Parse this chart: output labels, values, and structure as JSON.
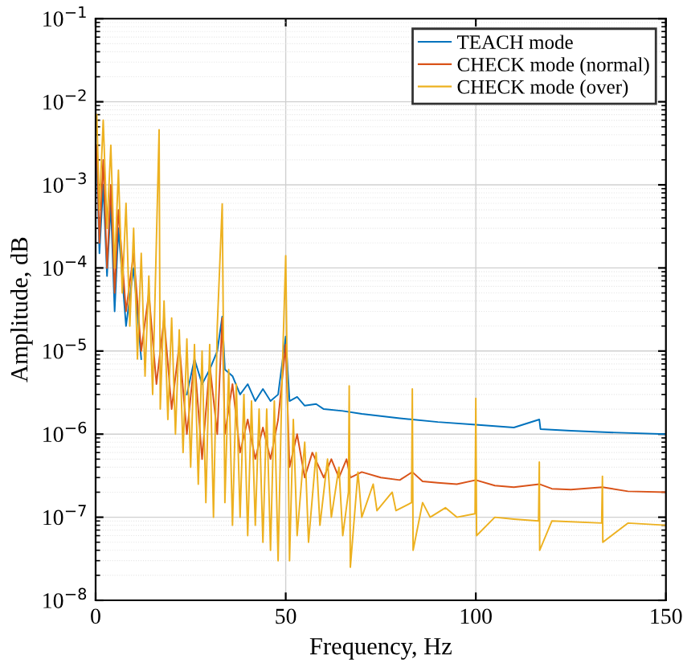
{
  "chart_data": {
    "type": "line",
    "xlabel": "Frequency, Hz",
    "ylabel": "Amplitude, dB",
    "log": "y",
    "grid": true,
    "legend": "top right",
    "marker": "none",
    "line_style": "solid",
    "xlim": [
      0,
      150
    ],
    "xticks": [
      0,
      50,
      100,
      150
    ],
    "ylim": [
      1e-08,
      0.1
    ],
    "yticks": [
      {
        "value": 1e-08,
        "label": "10$^{−8}$"
      },
      {
        "value": 1e-07,
        "label": "10$^{−7}$"
      },
      {
        "value": 1e-06,
        "label": "10$^{−6}$"
      },
      {
        "value": 1e-05,
        "label": "10$^{−5}$"
      },
      {
        "value": 0.0001,
        "label": "10$^{−4}$"
      },
      {
        "value": 0.001,
        "label": "10$^{−3}$"
      },
      {
        "value": 0.01,
        "label": "10$^{−2}$"
      },
      {
        "value": 0.1,
        "label": "10$^{−1}$"
      }
    ],
    "series": [
      {
        "name": "TEACH mode",
        "color": "#0072bd",
        "x": [
          0.3,
          1,
          2,
          3,
          4,
          5,
          6,
          8,
          10,
          12,
          14,
          16,
          18,
          20,
          22,
          24,
          26,
          28,
          30,
          32,
          33.3,
          34,
          36,
          38,
          40,
          42,
          44,
          46,
          48,
          50,
          51,
          53,
          55,
          58,
          60,
          65,
          70,
          75,
          80,
          90,
          100,
          110,
          116.7,
          117,
          125,
          135,
          150
        ],
        "values": [
          0.002,
          0.00015,
          0.001,
          8e-05,
          0.0006,
          3e-05,
          0.0003,
          2e-05,
          0.0001,
          8e-06,
          null,
          null,
          null,
          null,
          null,
          3e-06,
          8e-06,
          4e-06,
          6e-06,
          1e-05,
          2.6e-05,
          6e-06,
          5e-06,
          3e-06,
          4e-06,
          2.5e-06,
          3.5e-06,
          2.5e-06,
          3e-06,
          1.5e-05,
          2.5e-06,
          2.8e-06,
          2.2e-06,
          2.3e-06,
          2e-06,
          1.9e-06,
          1.75e-06,
          1.65e-06,
          1.55e-06,
          1.4e-06,
          1.3e-06,
          1.2e-06,
          1.5e-06,
          1.15e-06,
          1.1e-06,
          1.05e-06,
          1e-06
        ]
      },
      {
        "name": "CHECK mode (normal)",
        "color": "#d95319",
        "x": [
          0.3,
          1,
          2,
          3,
          4,
          5,
          6,
          8,
          10,
          12,
          14,
          16,
          18,
          20,
          22,
          24,
          26,
          28,
          30,
          32,
          33.3,
          34,
          36,
          38,
          40,
          42,
          44,
          46,
          48,
          50,
          51,
          53,
          55,
          57,
          60,
          62,
          64,
          66,
          67,
          70,
          75,
          80,
          83.3,
          86,
          90,
          95,
          100,
          105,
          110,
          116.7,
          120,
          125,
          133.3,
          140,
          150
        ],
        "values": [
          0.003,
          0.0002,
          0.002,
          0.0001,
          0.001,
          5e-05,
          0.0005,
          3e-05,
          0.00015,
          1e-05,
          5e-05,
          4e-06,
          2.5e-05,
          2e-06,
          1.2e-05,
          1e-06,
          8e-06,
          5e-07,
          7e-06,
          1e-06,
          2.5e-05,
          1e-06,
          4e-06,
          6e-07,
          1.5e-06,
          5e-07,
          1.2e-06,
          5e-07,
          1.5e-06,
          1.2e-05,
          4e-07,
          1e-06,
          3e-07,
          6e-07,
          3e-07,
          5e-07,
          3e-07,
          5e-07,
          3e-07,
          3.5e-07,
          3e-07,
          2.8e-07,
          3.5e-07,
          2.7e-07,
          2.6e-07,
          2.5e-07,
          2.8e-07,
          2.4e-07,
          2.3e-07,
          2.5e-07,
          2.2e-07,
          2.15e-07,
          2.3e-07,
          2.05e-07,
          2e-07
        ]
      },
      {
        "name": "CHECK mode (over)",
        "color": "#edb120",
        "x": [
          0.3,
          1,
          2,
          3,
          4,
          5,
          6,
          7,
          8,
          9,
          10,
          11,
          12,
          13,
          14,
          15,
          16.7,
          17,
          18,
          19,
          20,
          21,
          22,
          23,
          24,
          25,
          26,
          27,
          28,
          29,
          30,
          31,
          32,
          33.3,
          34,
          35,
          36,
          37,
          38,
          39,
          40,
          41,
          42,
          43,
          44,
          45,
          46,
          47,
          48,
          49,
          50,
          51,
          52,
          53,
          55,
          56,
          58,
          59,
          61,
          62,
          64,
          65,
          66.5,
          66.7,
          67,
          69,
          70,
          73,
          74,
          78,
          79,
          83.1,
          83.3,
          83.5,
          86,
          88,
          92,
          95,
          99.8,
          100,
          100.2,
          105,
          110,
          116.5,
          116.7,
          116.8,
          120,
          133.1,
          133.3,
          133.4,
          140,
          150
        ],
        "values": [
          0.007,
          0.0005,
          0.006,
          0.0003,
          0.003,
          0.0001,
          0.0015,
          5e-05,
          0.0006,
          2e-05,
          0.0003,
          8e-06,
          0.00015,
          5e-06,
          8e-05,
          3e-06,
          0.0046,
          2e-06,
          4e-05,
          1.5e-06,
          2.5e-05,
          1e-06,
          1.8e-05,
          6e-07,
          1.4e-05,
          4e-07,
          1.2e-05,
          2.5e-07,
          1e-05,
          1.5e-07,
          1.2e-05,
          1e-07,
          2e-05,
          0.00059,
          1.5e-07,
          6e-06,
          8e-08,
          4e-06,
          1e-07,
          3e-06,
          6e-08,
          2.5e-06,
          8e-08,
          2e-06,
          5e-08,
          2e-06,
          4e-08,
          2.5e-06,
          3e-08,
          4e-06,
          0.00014,
          3e-08,
          1.5e-06,
          6e-08,
          8e-07,
          5e-08,
          6e-07,
          8e-08,
          5e-07,
          1e-07,
          4e-07,
          6e-08,
          2e-07,
          3.8e-06,
          2.5e-08,
          3.5e-07,
          1e-07,
          2.5e-07,
          1.2e-07,
          2e-07,
          1.2e-07,
          1.5e-07,
          3.5e-06,
          4e-08,
          1.5e-07,
          1e-07,
          1.3e-07,
          1e-07,
          1.1e-07,
          2.7e-06,
          6e-08,
          1e-07,
          9.5e-08,
          9e-08,
          4.6e-07,
          4e-08,
          9e-08,
          8.5e-08,
          3.1e-07,
          5e-08,
          8.5e-08,
          8e-08
        ]
      }
    ]
  }
}
